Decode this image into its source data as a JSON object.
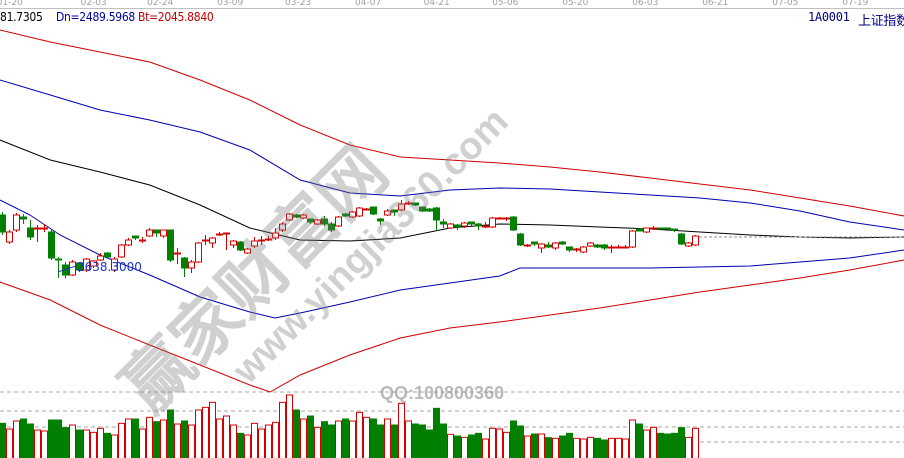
{
  "header": {
    "up_value": "81.7305",
    "dn_value": "Dn=2489.5968",
    "bt_value": "Bt=2045.8840",
    "symbol": "1A0001",
    "name": "上证指数"
  },
  "watermark": {
    "logo": "赢家财富网",
    "site": "www.yingjia360.com",
    "qq": "QQ:100800360"
  },
  "colors": {
    "up": "#d40000",
    "down": "#007f00",
    "band_red": "#d00000",
    "band_blue": "#0000b0",
    "mid": "#000000",
    "axis_text": "#a0a0a0",
    "label_blue": "#2030c0"
  },
  "chart_data": {
    "type": "candlestick",
    "x_ticks": [
      {
        "label": "01-20",
        "index": 1.1
      },
      {
        "label": "02-03",
        "index": 13.1
      },
      {
        "label": "02-24",
        "index": 22.6
      },
      {
        "label": "03-09",
        "index": 32.6
      },
      {
        "label": "03-23",
        "index": 42.3
      },
      {
        "label": "04-07",
        "index": 52.3
      },
      {
        "label": "04-21",
        "index": 62.1
      },
      {
        "label": "05-06",
        "index": 71.9
      },
      {
        "label": "05-20",
        "index": 81.9
      },
      {
        "label": "06-03",
        "index": 91.9
      },
      {
        "label": "06-21",
        "index": 101.9
      },
      {
        "label": "07-05",
        "index": 111.9
      },
      {
        "label": "07-19",
        "index": 121.9
      }
    ],
    "low_annotation": {
      "label": "2638.3000",
      "index": 8,
      "price": 2638.3
    },
    "candles_ochl_pixels_note_removed": null,
    "candles": [
      [
        215,
        232,
        212,
        235
      ],
      [
        242,
        232,
        230,
        244
      ],
      [
        230,
        215,
        213,
        232
      ],
      [
        217,
        219,
        214,
        224
      ],
      [
        228,
        237,
        220,
        240
      ],
      [
        229,
        228,
        225,
        242
      ],
      [
        229,
        228,
        224,
        232
      ],
      [
        232,
        258,
        230,
        260
      ],
      [
        259,
        260,
        257,
        278
      ],
      [
        265,
        275,
        262,
        278
      ],
      [
        275,
        262,
        260,
        276
      ],
      [
        263,
        270,
        262,
        272
      ],
      [
        270,
        259,
        258,
        272
      ],
      [
        266,
        261,
        260,
        268
      ],
      [
        260,
        256,
        253,
        261
      ],
      [
        253,
        257,
        252,
        258
      ],
      [
        270,
        259,
        257,
        272
      ],
      [
        257,
        245,
        244,
        258
      ],
      [
        245,
        240,
        238,
        246
      ],
      [
        236,
        238,
        236,
        240
      ],
      [
        241,
        240,
        237,
        243
      ],
      [
        236,
        230,
        228,
        237
      ],
      [
        230,
        233,
        230,
        237
      ],
      [
        236,
        230,
        230,
        238
      ],
      [
        230,
        260,
        230,
        262
      ],
      [
        254,
        253,
        248,
        264
      ],
      [
        258,
        268,
        257,
        277
      ],
      [
        268,
        262,
        260,
        273
      ],
      [
        262,
        243,
        242,
        263
      ],
      [
        241,
        240,
        235,
        245
      ],
      [
        243,
        238,
        237,
        248
      ],
      [
        235,
        234,
        232,
        236
      ],
      [
        234,
        233,
        233,
        250
      ],
      [
        245,
        241,
        240,
        248
      ],
      [
        242,
        250,
        241,
        251
      ],
      [
        253,
        249,
        248,
        254
      ],
      [
        246,
        241,
        237,
        248
      ],
      [
        241,
        240,
        236,
        245
      ],
      [
        240,
        239,
        236,
        241
      ],
      [
        238,
        233,
        228,
        240
      ],
      [
        230,
        224,
        222,
        232
      ],
      [
        220,
        214,
        213,
        221
      ],
      [
        215,
        217,
        214,
        218
      ],
      [
        218,
        215,
        214,
        219
      ],
      [
        219,
        222,
        219,
        224
      ],
      [
        224,
        220,
        219,
        225
      ],
      [
        219,
        224,
        216,
        226
      ],
      [
        224,
        230,
        222,
        232
      ],
      [
        226,
        217,
        216,
        227
      ],
      [
        214,
        216,
        213,
        217
      ],
      [
        217,
        212,
        211,
        218
      ],
      [
        216,
        208,
        207,
        217
      ],
      [
        210,
        209,
        208,
        210
      ],
      [
        207,
        214,
        207,
        215
      ],
      [
        219,
        221,
        218,
        225
      ],
      [
        215,
        211,
        209,
        216
      ],
      [
        210,
        212,
        210,
        216
      ],
      [
        210,
        204,
        200,
        211
      ],
      [
        204,
        203,
        201,
        205
      ],
      [
        203,
        205,
        203,
        206
      ],
      [
        207,
        211,
        207,
        212
      ],
      [
        209,
        211,
        208,
        212
      ],
      [
        208,
        220,
        207,
        231
      ],
      [
        222,
        224,
        219,
        228
      ],
      [
        228,
        224,
        223,
        229
      ],
      [
        225,
        227,
        224,
        230
      ],
      [
        226,
        223,
        222,
        228
      ],
      [
        222,
        224,
        222,
        226
      ],
      [
        224,
        226,
        223,
        230
      ],
      [
        227,
        226,
        222,
        228
      ],
      [
        227,
        218,
        217,
        228
      ],
      [
        219,
        218,
        217,
        219
      ],
      [
        219,
        218,
        217,
        221
      ],
      [
        217,
        230,
        216,
        231
      ],
      [
        234,
        245,
        233,
        246
      ],
      [
        246,
        245,
        244,
        247
      ],
      [
        242,
        244,
        242,
        246
      ],
      [
        248,
        244,
        243,
        253
      ],
      [
        245,
        247,
        242,
        248
      ],
      [
        248,
        243,
        242,
        250
      ],
      [
        242,
        244,
        241,
        245
      ],
      [
        247,
        250,
        247,
        252
      ],
      [
        250,
        249,
        248,
        252
      ],
      [
        252,
        247,
        246,
        253
      ],
      [
        246,
        243,
        242,
        247
      ],
      [
        245,
        247,
        244,
        248
      ],
      [
        245,
        248,
        244,
        250
      ],
      [
        248,
        247,
        245,
        253
      ],
      [
        248,
        247,
        245,
        248
      ],
      [
        248,
        247,
        245,
        248
      ],
      [
        247,
        231,
        230,
        248
      ],
      [
        229,
        231,
        229,
        231
      ],
      [
        232,
        228,
        228,
        233
      ],
      [
        229,
        228,
        226,
        230
      ],
      [
        228,
        229,
        228,
        229
      ],
      [
        228,
        229,
        228,
        229
      ],
      [
        229,
        230,
        229,
        232
      ],
      [
        234,
        244,
        233,
        245
      ],
      [
        246,
        243,
        242,
        247
      ],
      [
        245,
        236,
        235,
        246
      ]
    ],
    "volume": [
      104,
      87,
      111,
      117,
      102,
      84,
      81,
      114,
      114,
      91,
      99,
      84,
      84,
      77,
      89,
      74,
      69,
      104,
      117,
      117,
      87,
      122,
      109,
      114,
      144,
      102,
      111,
      99,
      144,
      152,
      167,
      117,
      126,
      99,
      74,
      69,
      104,
      87,
      99,
      107,
      167,
      189,
      144,
      117,
      126,
      92,
      109,
      99,
      111,
      117,
      111,
      137,
      122,
      117,
      99,
      117,
      99,
      164,
      111,
      102,
      99,
      84,
      149,
      102,
      71,
      66,
      62,
      69,
      74,
      57,
      89,
      87,
      77,
      111,
      96,
      66,
      72,
      72,
      61,
      59,
      66,
      74,
      59,
      57,
      62,
      59,
      54,
      59,
      59,
      57,
      114,
      102,
      84,
      92,
      74,
      72,
      74,
      91,
      62,
      89
    ],
    "bands": {
      "upper_red": [
        [
          -0.3,
          3606
        ],
        [
          6.9,
          3558
        ],
        [
          14,
          3518
        ],
        [
          21.1,
          3478
        ],
        [
          28.3,
          3406
        ],
        [
          35.4,
          3326
        ],
        [
          42.6,
          3226
        ],
        [
          49.7,
          3146
        ],
        [
          56.9,
          3098
        ],
        [
          64,
          3086
        ],
        [
          71.1,
          3074
        ],
        [
          78.3,
          3058
        ],
        [
          85.4,
          3038
        ],
        [
          92.6,
          3014
        ],
        [
          99.7,
          2990
        ],
        [
          106.9,
          2966
        ],
        [
          114,
          2934
        ],
        [
          121.1,
          2902
        ],
        [
          128.9,
          2862
        ]
      ],
      "upper_blue": [
        [
          -0.3,
          3406
        ],
        [
          6.9,
          3346
        ],
        [
          14,
          3286
        ],
        [
          21.1,
          3246
        ],
        [
          28.3,
          3198
        ],
        [
          35.4,
          3126
        ],
        [
          42.6,
          3006
        ],
        [
          49.7,
          2954
        ],
        [
          56.9,
          2942
        ],
        [
          64,
          2966
        ],
        [
          71.1,
          2974
        ],
        [
          78.3,
          2970
        ],
        [
          85.4,
          2958
        ],
        [
          92.6,
          2946
        ],
        [
          99.7,
          2934
        ],
        [
          106.9,
          2914
        ],
        [
          114,
          2882
        ],
        [
          121.1,
          2838
        ],
        [
          128.9,
          2806
        ]
      ],
      "middle": [
        [
          -0.3,
          3166
        ],
        [
          6.9,
          3086
        ],
        [
          14,
          3038
        ],
        [
          21.1,
          2986
        ],
        [
          28.3,
          2906
        ],
        [
          35.4,
          2814
        ],
        [
          42.6,
          2766
        ],
        [
          49.7,
          2762
        ],
        [
          56.9,
          2774
        ],
        [
          64,
          2814
        ],
        [
          71.1,
          2830
        ],
        [
          78.3,
          2826
        ],
        [
          85.4,
          2818
        ],
        [
          92.6,
          2810
        ],
        [
          99.7,
          2798
        ],
        [
          106.9,
          2786
        ],
        [
          114,
          2778
        ],
        [
          121.1,
          2774
        ],
        [
          128.9,
          2778
        ]
      ],
      "lower_blue": [
        [
          -0.3,
          2926
        ],
        [
          4,
          2866
        ],
        [
          8.3,
          2786
        ],
        [
          14,
          2706
        ],
        [
          21.1,
          2626
        ],
        [
          28.3,
          2538
        ],
        [
          35.4,
          2478
        ],
        [
          39,
          2454
        ],
        [
          42.6,
          2474
        ],
        [
          49.7,
          2518
        ],
        [
          56.9,
          2566
        ],
        [
          64,
          2594
        ],
        [
          71.1,
          2622
        ],
        [
          74,
          2654
        ],
        [
          85.4,
          2654
        ],
        [
          92.6,
          2654
        ],
        [
          99.7,
          2658
        ],
        [
          106.9,
          2662
        ],
        [
          114,
          2678
        ],
        [
          121.1,
          2694
        ],
        [
          128.9,
          2726
        ]
      ],
      "lower_red": [
        [
          -0.3,
          2598
        ],
        [
          6.9,
          2526
        ],
        [
          14,
          2426
        ],
        [
          21.1,
          2346
        ],
        [
          28.3,
          2266
        ],
        [
          35.4,
          2186
        ],
        [
          38.3,
          2158
        ],
        [
          42.6,
          2226
        ],
        [
          49.7,
          2306
        ],
        [
          56.9,
          2374
        ],
        [
          64,
          2414
        ],
        [
          71.1,
          2438
        ],
        [
          78.3,
          2466
        ],
        [
          85.4,
          2494
        ],
        [
          92.6,
          2526
        ],
        [
          99.7,
          2558
        ],
        [
          106.9,
          2586
        ],
        [
          114,
          2614
        ],
        [
          121.1,
          2646
        ],
        [
          128.9,
          2686
        ]
      ]
    },
    "current_price_line": 2778
  }
}
